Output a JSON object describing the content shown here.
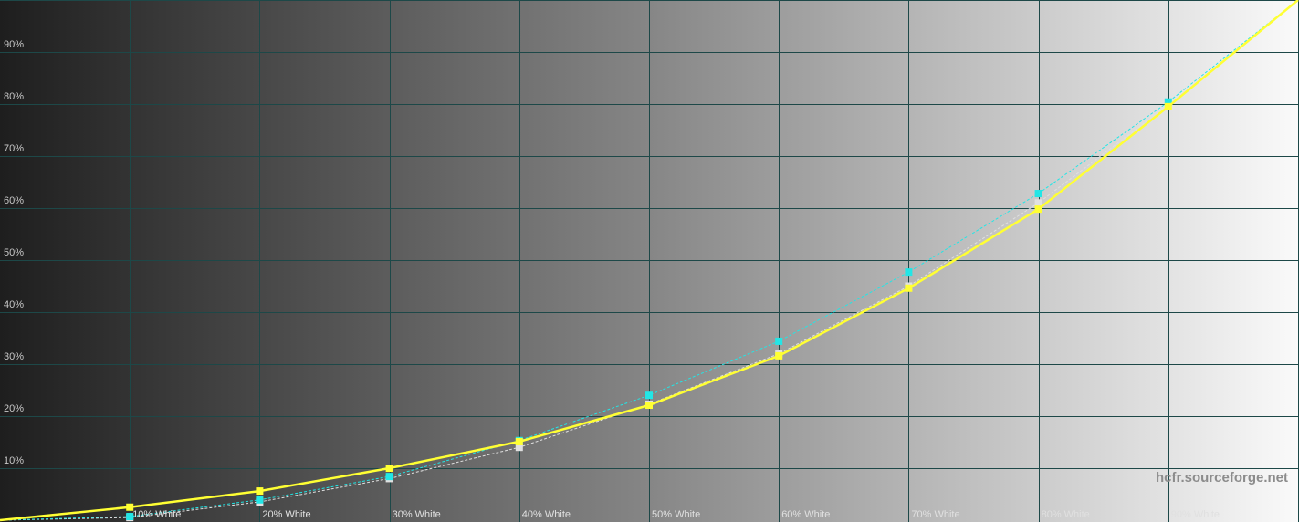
{
  "chart_data": {
    "type": "line",
    "title": "",
    "xlabel": "",
    "ylabel": "",
    "x": [
      0,
      10,
      20,
      30,
      40,
      50,
      60,
      70,
      80,
      90,
      100
    ],
    "xlim": [
      0,
      100
    ],
    "ylim": [
      0,
      100
    ],
    "grid": true,
    "x_tick_labels": [
      "10% White",
      "20% White",
      "30% White",
      "40% White",
      "50% White",
      "60% White",
      "70% White",
      "80% White",
      "90% White"
    ],
    "y_tick_labels": [
      "10%",
      "20%",
      "30%",
      "40%",
      "50%",
      "60%",
      "70%",
      "80%",
      "90%"
    ],
    "series": [
      {
        "color": "#ffff33",
        "style": "solid",
        "values": [
          0,
          2.5,
          5.6,
          10,
          15.1,
          22.1,
          31.6,
          44.6,
          59.8,
          79.5,
          100
        ]
      },
      {
        "color": "#22e6e6",
        "style": "dashed",
        "values": [
          0,
          0.7,
          3.9,
          8.4,
          15.3,
          24,
          34.4,
          47.7,
          62.8,
          80.4,
          100
        ]
      },
      {
        "color": "#e0e0e0",
        "style": "dashed",
        "values": [
          0,
          0.5,
          3.5,
          8.0,
          14.0,
          22.3,
          32,
          45,
          61,
          79.8,
          100
        ]
      }
    ],
    "background": "grayscale gradient dark to light",
    "grid_color": "#1d4848"
  },
  "watermark": "hcfr.sourceforge.net"
}
